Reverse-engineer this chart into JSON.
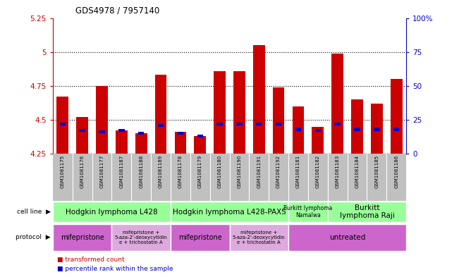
{
  "title": "GDS4978 / 7957140",
  "samples": [
    "GSM1081175",
    "GSM1081176",
    "GSM1081177",
    "GSM1081187",
    "GSM1081188",
    "GSM1081189",
    "GSM1081178",
    "GSM1081179",
    "GSM1081180",
    "GSM1081190",
    "GSM1081191",
    "GSM1081192",
    "GSM1081181",
    "GSM1081182",
    "GSM1081183",
    "GSM1081184",
    "GSM1081185",
    "GSM1081186"
  ],
  "red_values": [
    4.67,
    4.52,
    4.75,
    4.42,
    4.4,
    4.83,
    4.41,
    4.38,
    4.86,
    4.86,
    5.05,
    4.74,
    4.6,
    4.45,
    4.99,
    4.65,
    4.62,
    4.8
  ],
  "blue_values": [
    4.47,
    4.42,
    4.41,
    4.42,
    4.4,
    4.46,
    4.4,
    4.38,
    4.47,
    4.47,
    4.47,
    4.47,
    4.43,
    4.42,
    4.47,
    4.43,
    4.43,
    4.43
  ],
  "ymin": 4.25,
  "ymax": 5.25,
  "yticks": [
    4.25,
    4.5,
    4.75,
    5.0,
    5.25
  ],
  "ytick_labels": [
    "4.25",
    "4.5",
    "4.75",
    "5",
    "5.25"
  ],
  "right_yticks": [
    0,
    25,
    50,
    75,
    100
  ],
  "right_ytick_labels": [
    "0",
    "25",
    "50",
    "75",
    "100%"
  ],
  "bar_color": "#cc0000",
  "blue_color": "#0000cc",
  "sample_bg_color": "#c0c0c0",
  "cell_line_color": "#99ff99",
  "protocol_color1": "#cc66cc",
  "protocol_color2": "#ddaadd",
  "bar_width": 0.6,
  "bg_color": "#ffffff"
}
